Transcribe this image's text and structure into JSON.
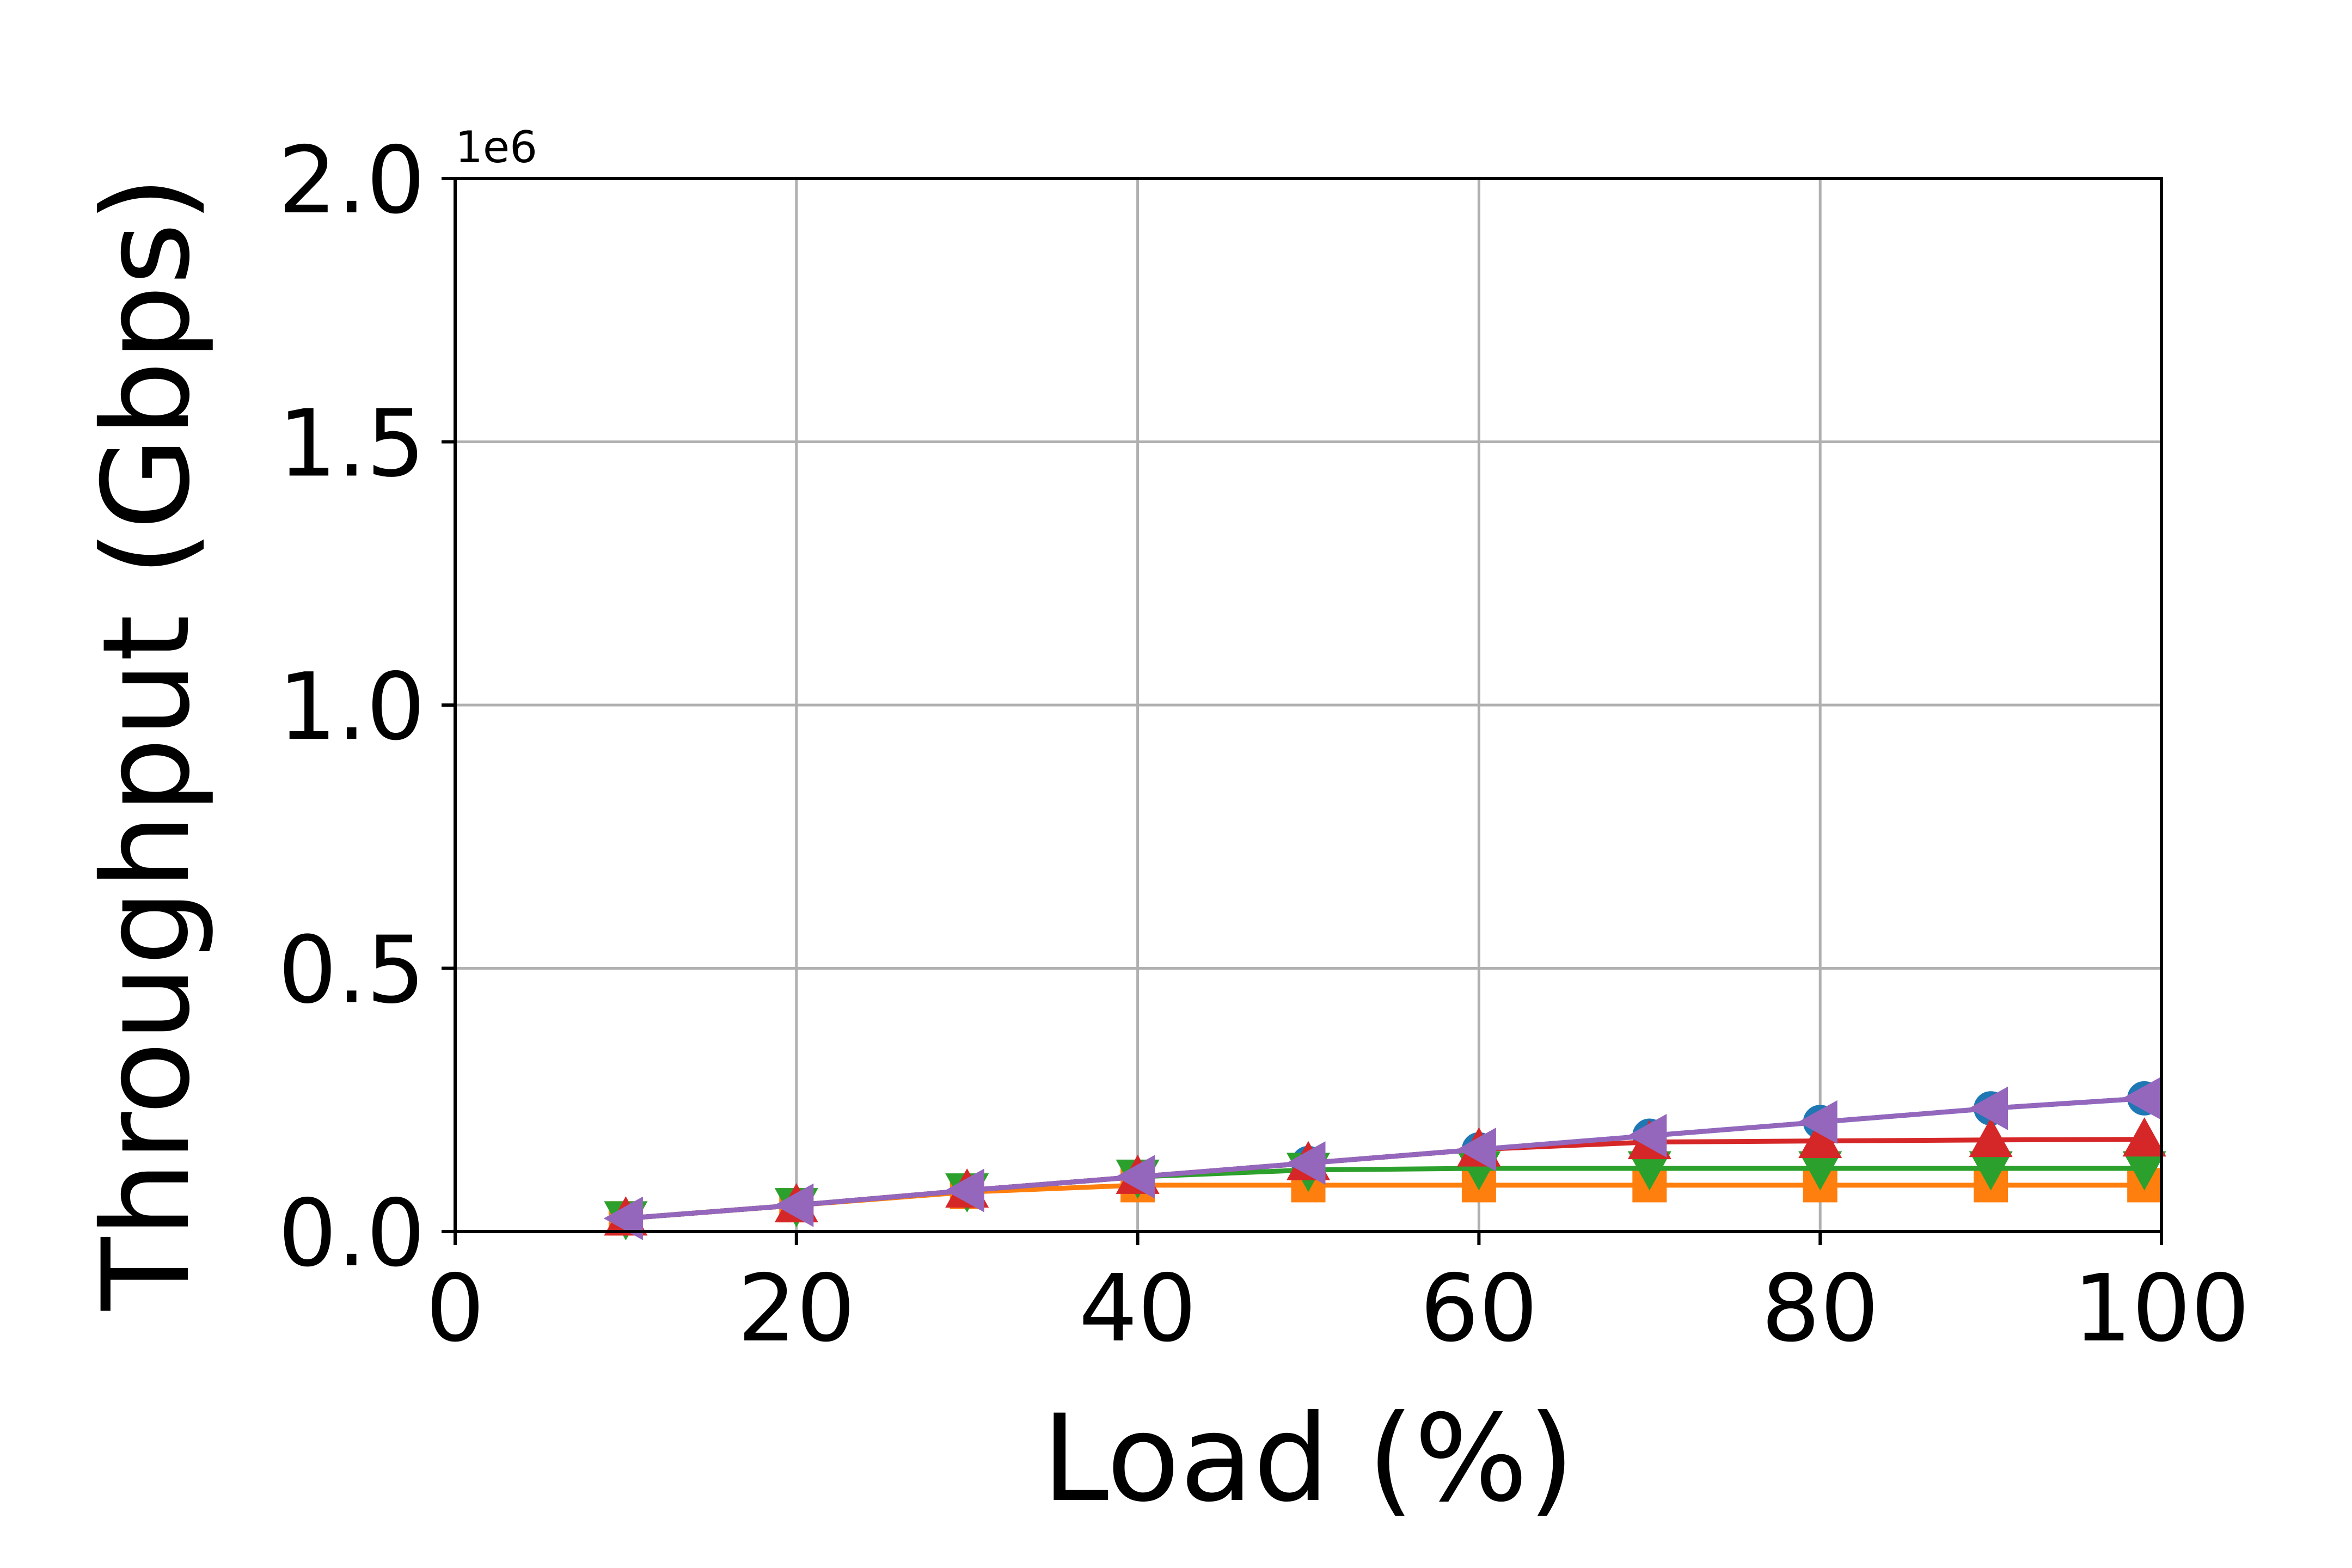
{
  "chart_data": {
    "type": "line",
    "title": "",
    "xlabel": "Load (%)",
    "ylabel": "Throughput (Gbps)",
    "y_offset_label": "1e6",
    "xlim": [
      0,
      100
    ],
    "ylim": [
      0,
      2.0
    ],
    "x_ticks": [
      "0",
      "20",
      "40",
      "60",
      "80",
      "100"
    ],
    "y_ticks": [
      "0.0",
      "0.5",
      "1.0",
      "1.5",
      "2.0"
    ],
    "grid": true,
    "legend": "none",
    "x": [
      10,
      20,
      30,
      40,
      50,
      60,
      70,
      80,
      90,
      99
    ],
    "series": [
      {
        "color": "#1f77b4",
        "marker": "circle",
        "values": [
          0.025,
          0.05,
          0.078,
          0.104,
          0.13,
          0.156,
          0.182,
          0.208,
          0.234,
          0.253
        ]
      },
      {
        "color": "#ff7f0e",
        "marker": "square",
        "values": [
          0.025,
          0.05,
          0.075,
          0.088,
          0.088,
          0.088,
          0.088,
          0.088,
          0.088,
          0.088
        ]
      },
      {
        "color": "#2ca02c",
        "marker": "triangle-down",
        "values": [
          0.025,
          0.05,
          0.078,
          0.104,
          0.117,
          0.12,
          0.12,
          0.12,
          0.12,
          0.12
        ]
      },
      {
        "color": "#d62728",
        "marker": "triangle-up",
        "values": [
          0.025,
          0.05,
          0.078,
          0.104,
          0.13,
          0.156,
          0.17,
          0.172,
          0.174,
          0.175
        ]
      },
      {
        "color": "#9467bd",
        "marker": "triangle-left",
        "values": [
          0.025,
          0.05,
          0.078,
          0.104,
          0.13,
          0.156,
          0.182,
          0.208,
          0.234,
          0.253
        ]
      }
    ]
  }
}
